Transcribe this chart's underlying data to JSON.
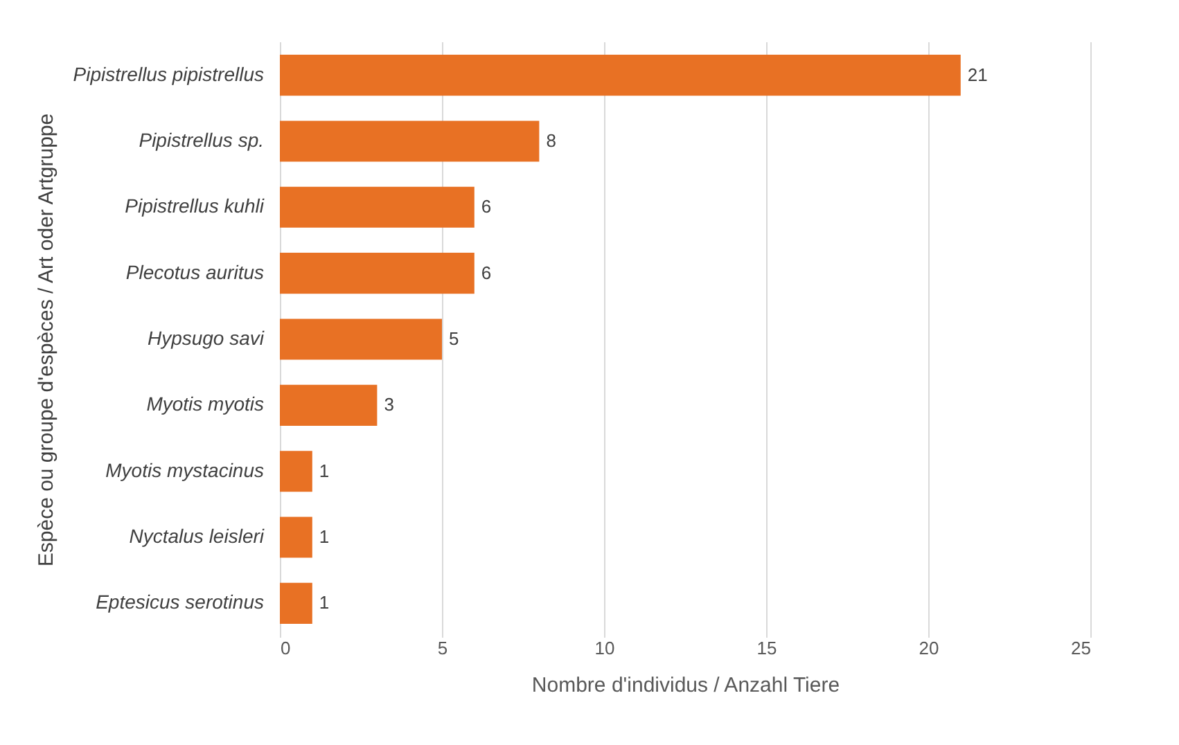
{
  "chart_data": {
    "type": "bar",
    "orientation": "horizontal",
    "xlabel": "Nombre d'individus / Anzahl Tiere",
    "ylabel": "Espèce ou groupe d'espèces / Art oder Artgruppe",
    "categories": [
      "Pipistrellus pipistrellus",
      "Pipistrellus sp.",
      "Pipistrellus kuhli",
      "Plecotus auritus",
      "Hypsugo savi",
      "Myotis myotis",
      "Myotis mystacinus",
      "Nyctalus leisleri",
      "Eptesicus serotinus"
    ],
    "values": [
      21,
      8,
      6,
      6,
      5,
      3,
      1,
      1,
      1
    ],
    "color": "#e87124",
    "xlim": [
      0,
      25
    ],
    "xticks": [
      0,
      5,
      10,
      15,
      20,
      25
    ],
    "grid": "x",
    "data_labels": true
  }
}
